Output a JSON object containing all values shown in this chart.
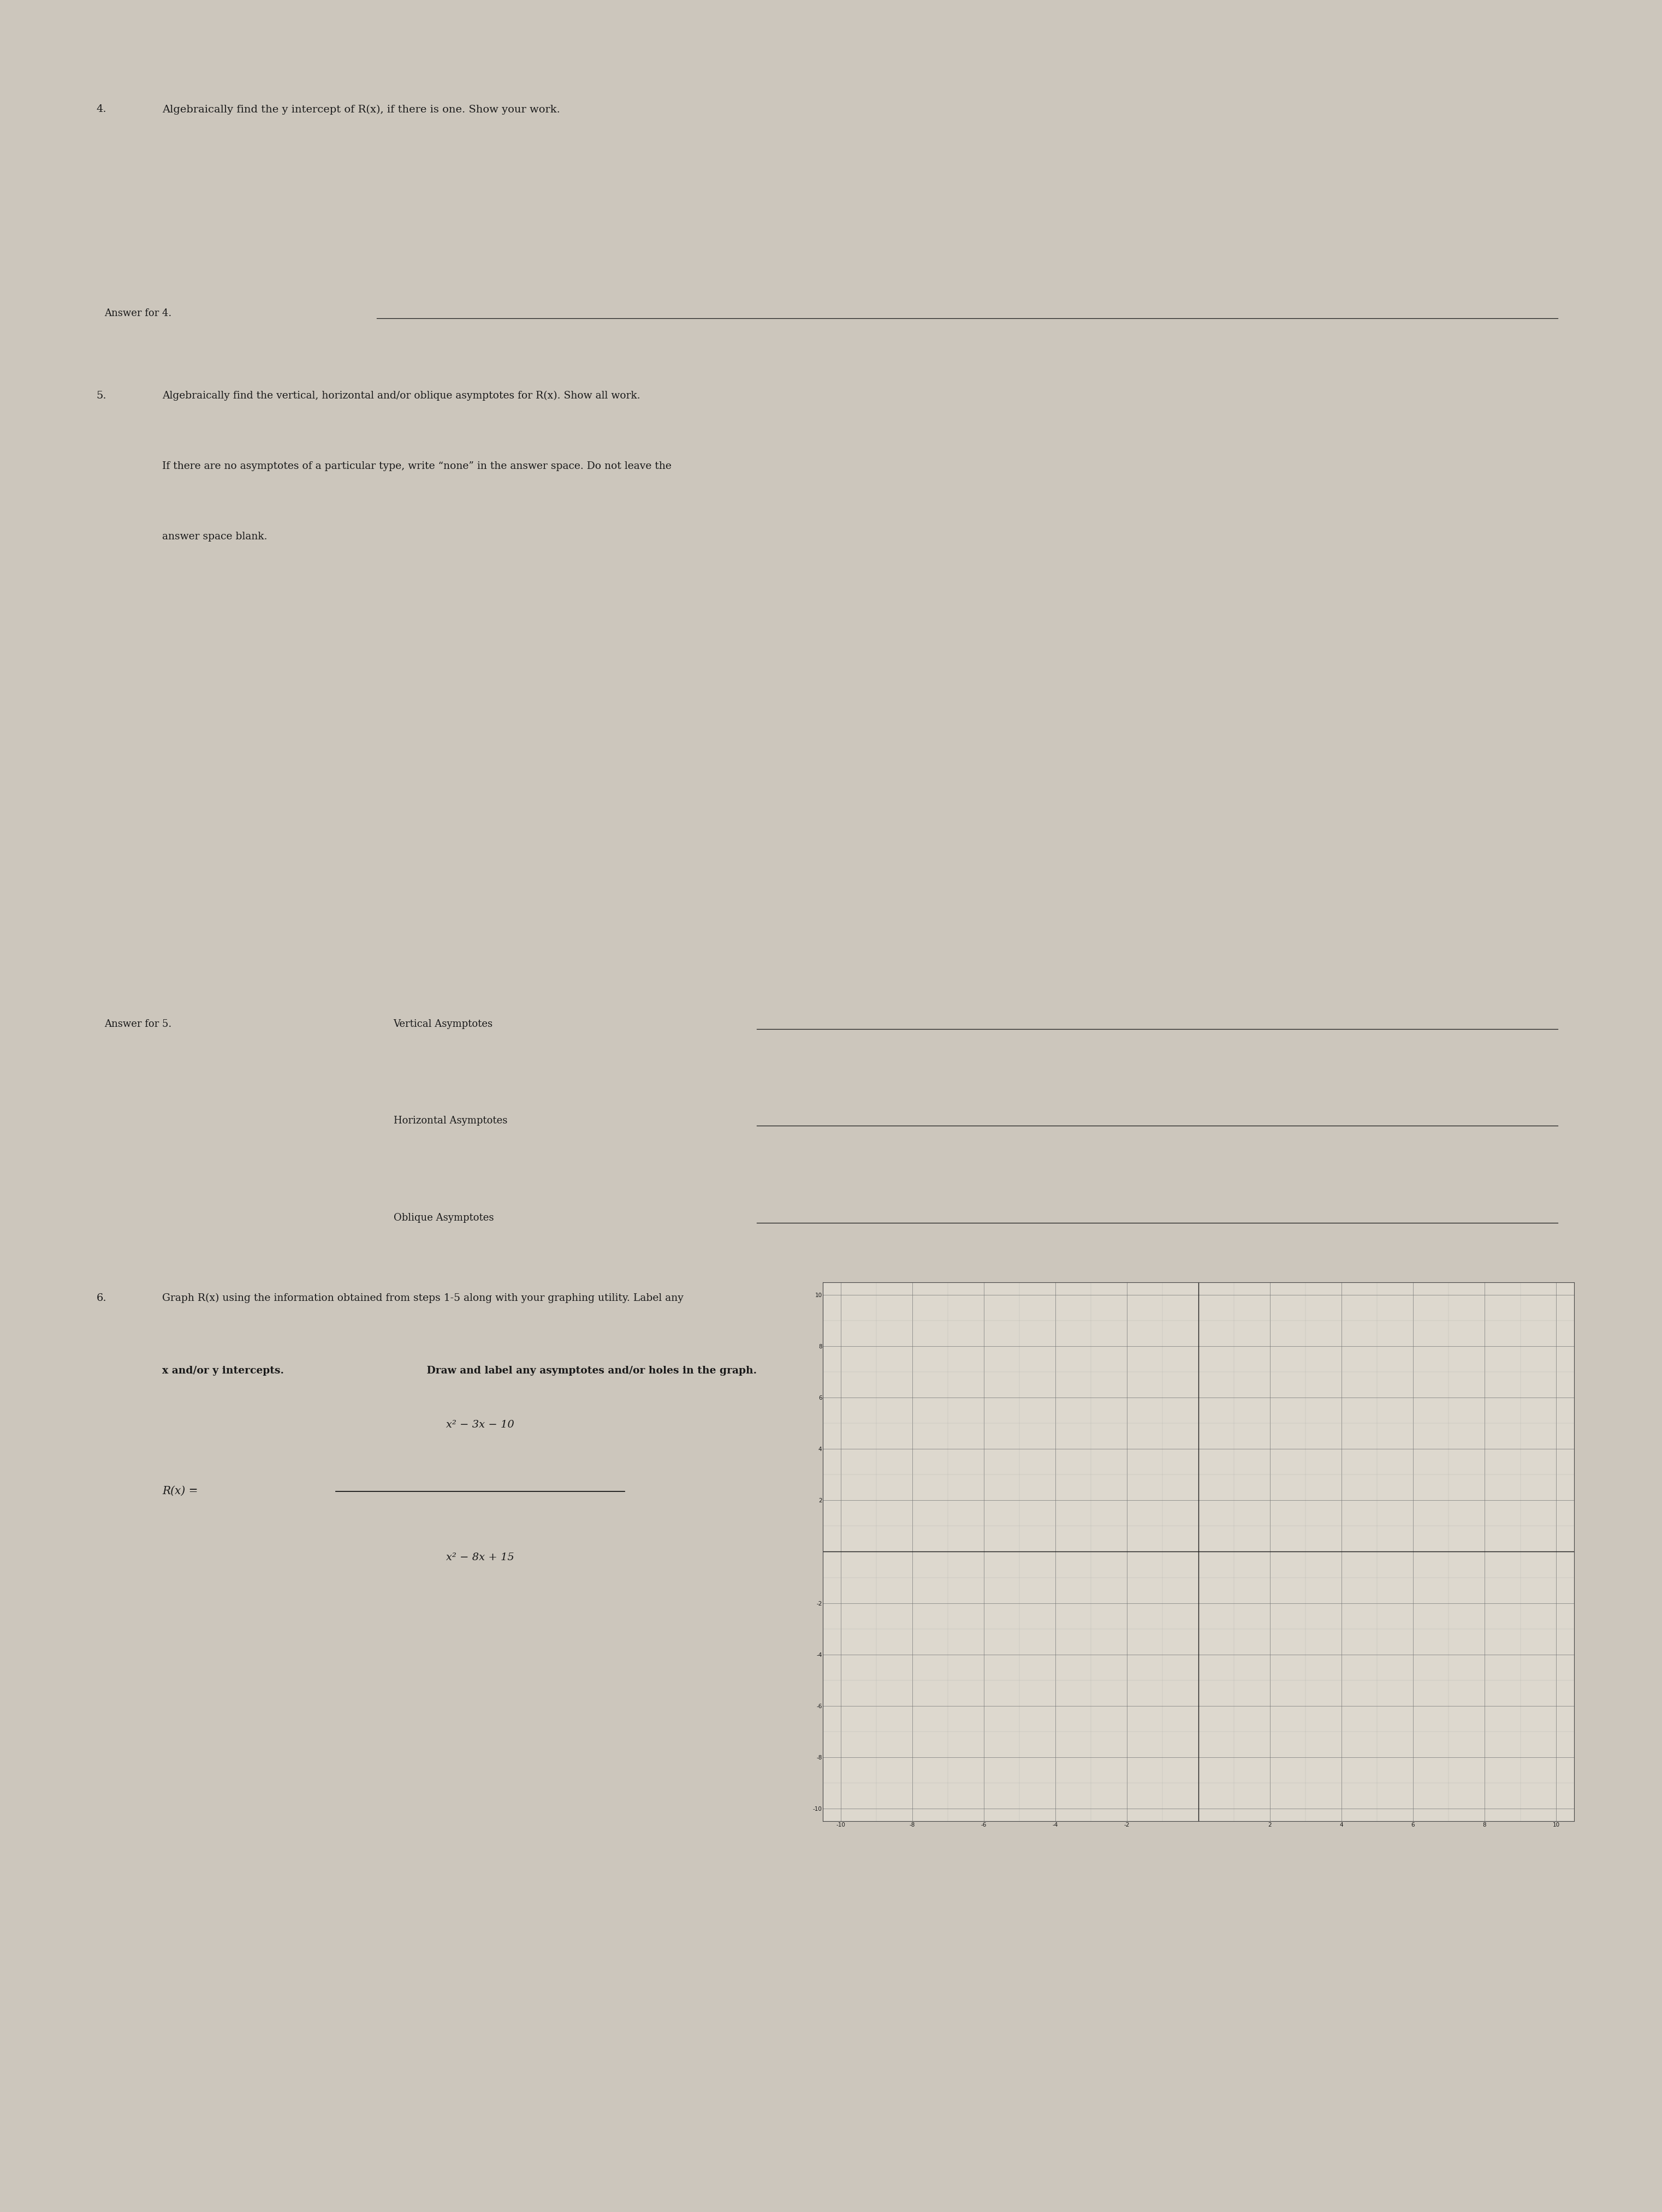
{
  "bg_color": "#ccc6bc",
  "paper_color": "#e2ddd6",
  "text_color": "#1a1a1a",
  "page_width": 30.24,
  "page_height": 40.32,
  "item4": {
    "number": "4.",
    "text": "Algebraically find the y intercept of R(x), if there is one. Show your work.",
    "answer_label": "Answer for 4."
  },
  "item5": {
    "number": "5.",
    "text_line1": "Algebraically find the vertical, horizontal and/or oblique asymptotes for R(x). Show all work.",
    "text_line2": "If there are no asymptotes of a particular type, write “none” in the answer space. Do not leave the",
    "text_line3": "answer space blank.",
    "answer_label": "Answer for 5.",
    "va_label": "Vertical Asymptotes",
    "ha_label": "Horizontal Asymptotes",
    "oa_label": "Oblique Asymptotes"
  },
  "item6": {
    "number": "6.",
    "text_normal": "Graph R(x) using the information obtained from steps 1-5 along with your graphing utility. Label any",
    "text_bold1": "x and/or y intercepts.",
    "text_bold2": " Draw and label any asymptotes and/or holes in the graph.",
    "formula_num": "x² − 3x − 10",
    "formula_denom": "x² − 8x + 15",
    "formula_Rx": "R(x) ="
  }
}
